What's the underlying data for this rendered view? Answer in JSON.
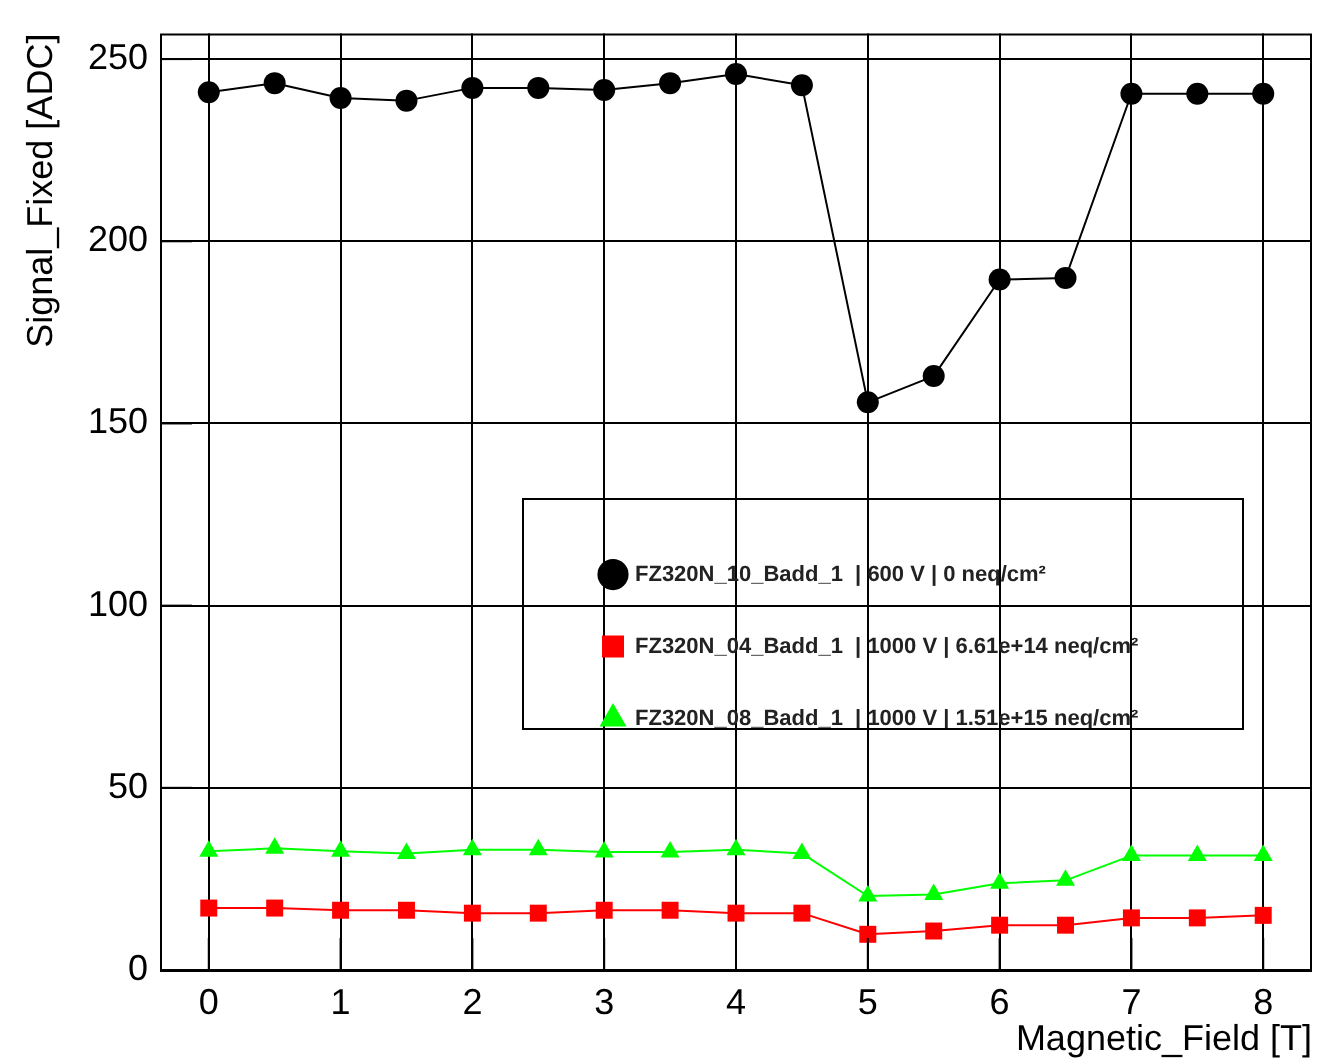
{
  "chart_data": {
    "type": "line",
    "xlabel": "Magnetic_Field [T]",
    "ylabel": "Signal_Fixed [ADC]",
    "x": [
      0,
      0.5,
      1,
      1.5,
      2,
      2.5,
      3,
      3.5,
      4,
      4.5,
      5,
      5.5,
      6,
      6.5,
      7,
      7.5,
      8
    ],
    "series": [
      {
        "name": "FZ320N_10_Badd_1  | 600 V | 0 neq/cm²",
        "color": "#000000",
        "marker": "circle",
        "values": [
          240.9,
          243.4,
          239.3,
          238.6,
          242.1,
          242.1,
          241.5,
          243.4,
          245.9,
          242.8,
          155.8,
          163.0,
          189.5,
          189.9,
          240.5,
          240.5,
          240.5
        ]
      },
      {
        "name": "FZ320N_04_Badd_1  | 1000 V | 6.61e+14 neq/cm²",
        "color": "#ff0000",
        "marker": "square",
        "values": [
          17.0,
          17.0,
          16.4,
          16.4,
          15.6,
          15.6,
          16.4,
          16.4,
          15.6,
          15.6,
          9.8,
          10.7,
          12.3,
          12.3,
          14.3,
          14.3,
          15.0
        ]
      },
      {
        "name": "FZ320N_08_Badd_1  | 1000 V | 1.51e+15 neq/cm²",
        "color": "#00ff00",
        "marker": "triangle",
        "values": [
          32.6,
          33.4,
          32.6,
          32.0,
          33.0,
          33.0,
          32.4,
          32.4,
          33.0,
          32.0,
          20.3,
          20.7,
          23.8,
          24.6,
          31.4,
          31.4,
          31.4
        ]
      }
    ],
    "xlim": [
      -0.37,
      8.37
    ],
    "xticks": [
      0,
      1,
      2,
      3,
      4,
      5,
      6,
      7,
      8
    ],
    "ylim": [
      0,
      257
    ],
    "yticks": [
      0,
      50,
      100,
      150,
      200,
      250
    ],
    "grid": true,
    "legend": "right",
    "line_style": "solid"
  }
}
